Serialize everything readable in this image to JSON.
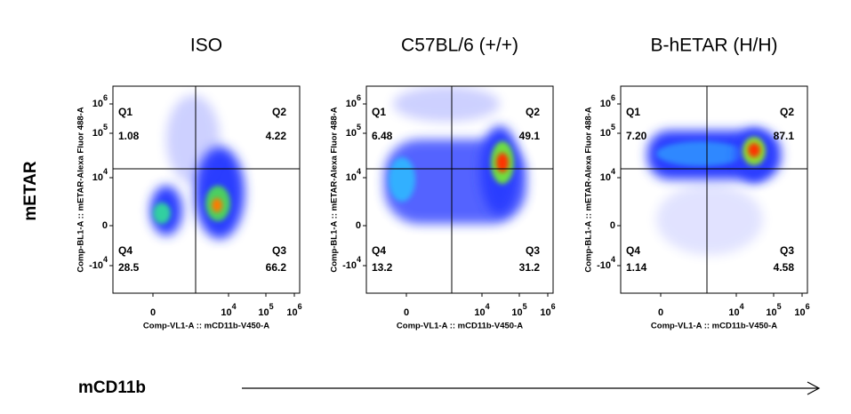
{
  "y_label": "mETAR",
  "x_label": "mCD11b",
  "panels": [
    {
      "title": "ISO",
      "quadrants": [
        {
          "label": "Q1",
          "value": "1.08"
        },
        {
          "label": "Q2",
          "value": "4.22"
        },
        {
          "label": "Q3",
          "value": "66.2"
        },
        {
          "label": "Q4",
          "value": "28.5"
        }
      ]
    },
    {
      "title": "C57BL/6 (+/+)",
      "quadrants": [
        {
          "label": "Q1",
          "value": "6.48"
        },
        {
          "label": "Q2",
          "value": "49.1"
        },
        {
          "label": "Q3",
          "value": "31.2"
        },
        {
          "label": "Q4",
          "value": "13.2"
        }
      ]
    },
    {
      "title": "B-hETAR (H/H)",
      "quadrants": [
        {
          "label": "Q1",
          "value": "7.20"
        },
        {
          "label": "Q2",
          "value": "87.1"
        },
        {
          "label": "Q3",
          "value": "4.58"
        },
        {
          "label": "Q4",
          "value": "1.14"
        }
      ]
    }
  ],
  "axis_x_title": "Comp-VL1-A :: mCD11b-V450-A",
  "axis_y_title": "Comp-BL1-A :: mETAR-Alexa Fluor 488-A",
  "x_ticks": [
    {
      "base": "0"
    },
    {
      "base": "10",
      "exp": "4"
    },
    {
      "base": "10",
      "exp": "5"
    },
    {
      "base": "10",
      "exp": "6"
    }
  ],
  "y_ticks": [
    {
      "base": "10",
      "exp": "6"
    },
    {
      "base": "10",
      "exp": "5"
    },
    {
      "base": "10",
      "exp": "4"
    },
    {
      "base": "0"
    },
    {
      "base": "-10",
      "exp": "4"
    }
  ]
}
